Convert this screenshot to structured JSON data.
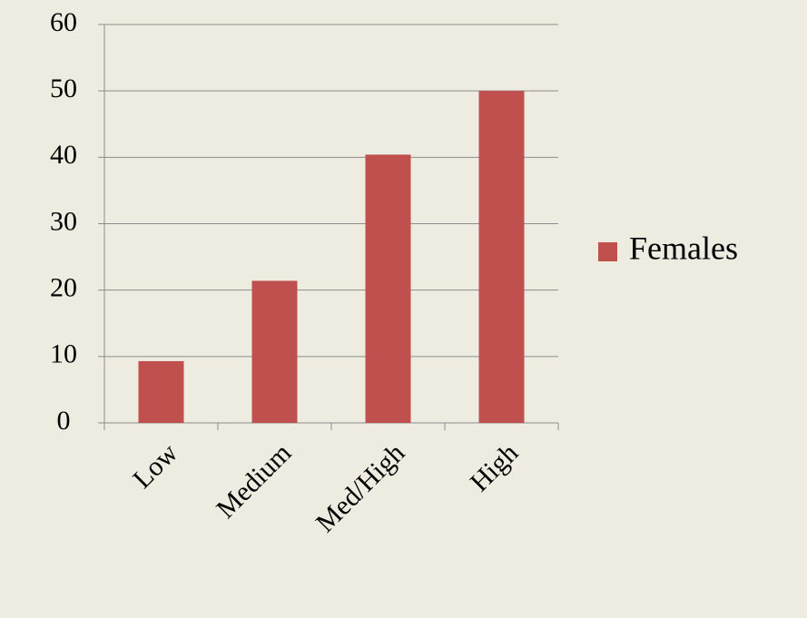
{
  "chart_data": {
    "type": "bar",
    "categories": [
      "Low",
      "Medium",
      "Med/High",
      "High"
    ],
    "series": [
      {
        "name": "Females",
        "color": "#c0504d",
        "values": [
          9.3,
          21.4,
          40.4,
          50.0
        ]
      }
    ],
    "ylim": [
      0,
      60
    ],
    "yticks": [
      0,
      10,
      20,
      30,
      40,
      50,
      60
    ],
    "grid": true,
    "legend": "right"
  }
}
